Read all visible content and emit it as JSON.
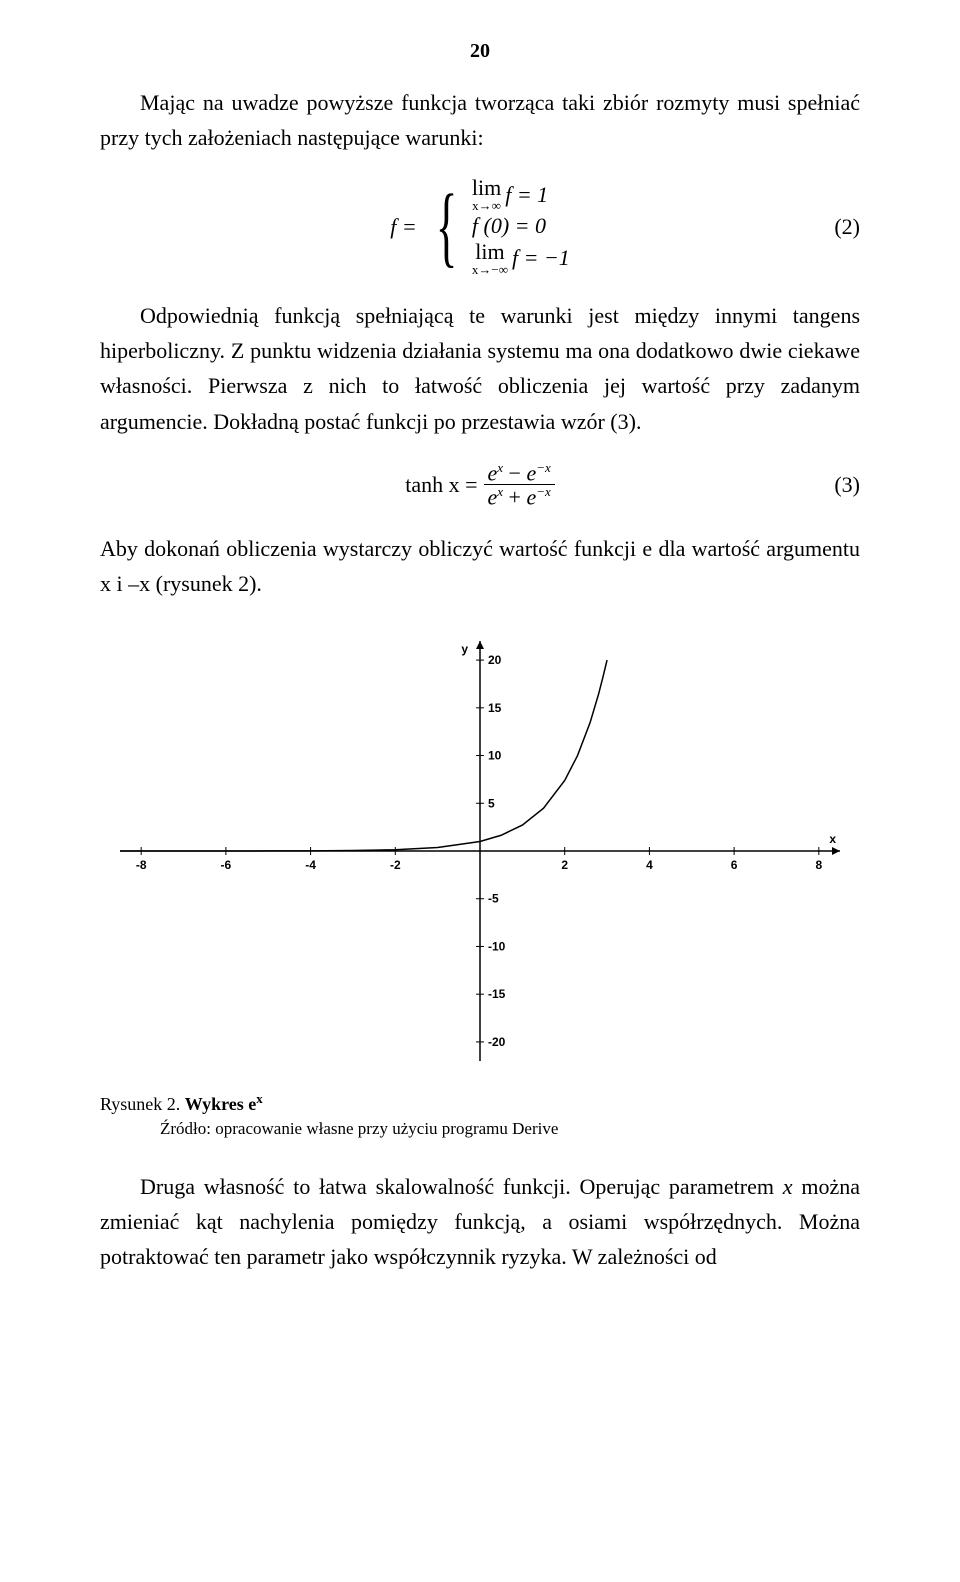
{
  "page_number": "20",
  "para1_a": "Mając na uwadze powyższe funkcja tworząca taki zbiór rozmyty musi spełniać przy tych założeniach następujące warunki:",
  "eq1": {
    "lhs": "f =",
    "lim_top_word": "lim",
    "lim_top_sub": "x→∞",
    "lim_top_rhs": "f = 1",
    "mid": "f (0) = 0",
    "lim_bot_word": "lim",
    "lim_bot_sub": "x→−∞",
    "lim_bot_rhs": "f = −1",
    "number": "(2)"
  },
  "para2": "Odpowiednią funkcją spełniającą te warunki jest między innymi tangens hiperboliczny. Z punktu widzenia działania systemu ma ona dodatkowo dwie ciekawe własności. Pierwsza z nich to łatwość obliczenia jej wartość przy zadanym argumencie. Dokładną postać funkcji po przestawia wzór (3).",
  "eq2": {
    "lhs": "tanh x =",
    "num_a": "e",
    "num_a_sup": "x",
    "num_minus": " − ",
    "num_b": "e",
    "num_b_sup": "−x",
    "den_a": "e",
    "den_a_sup": "x",
    "den_plus": " + ",
    "den_b": "e",
    "den_b_sup": "−x",
    "number": "(3)"
  },
  "para3": "Aby dokonań obliczenia wystarczy obliczyć wartość funkcji e dla wartość argumentu x  i –x (rysunek 2).",
  "figure": {
    "x_label": "x",
    "y_label": "y",
    "x_ticks": [
      -8,
      -6,
      -4,
      -2,
      2,
      4,
      6,
      8
    ],
    "y_ticks": [
      20,
      15,
      10,
      5,
      -5,
      -10,
      -15,
      -20
    ],
    "xlim": [
      -8.5,
      8.5
    ],
    "ylim": [
      -22,
      22
    ],
    "curve_points": [
      [
        -8.5,
        0.0002
      ],
      [
        -7,
        0.00091
      ],
      [
        -6,
        0.00248
      ],
      [
        -5,
        0.00674
      ],
      [
        -4,
        0.0183
      ],
      [
        -3,
        0.0498
      ],
      [
        -2,
        0.1353
      ],
      [
        -1,
        0.3679
      ],
      [
        0,
        1
      ],
      [
        0.5,
        1.6487
      ],
      [
        1,
        2.7183
      ],
      [
        1.5,
        4.4817
      ],
      [
        2,
        7.389
      ],
      [
        2.3,
        9.974
      ],
      [
        2.6,
        13.46
      ],
      [
        2.8,
        16.44
      ],
      [
        2.9,
        18.17
      ],
      [
        3.0,
        20.0
      ]
    ],
    "axis_color": "#000000",
    "curve_color": "#000000",
    "tick_color": "#000000",
    "tick_font_size": 12,
    "background": "#ffffff"
  },
  "caption_label": "Rysunek 2. ",
  "caption_bold": "Wykres e",
  "caption_sup": "x",
  "caption_source": "Źródło: opracowanie własne przy użyciu programu Derive",
  "para4": "Druga własność to łatwa skalowalność funkcji. Operując parametrem ",
  "para4_ital": "x",
  "para4_b": " można zmieniać kąt nachylenia pomiędzy funkcją, a osiami współrzędnych. Można potraktować ten parametr jako współczynnik ryzyka. W zależności od"
}
